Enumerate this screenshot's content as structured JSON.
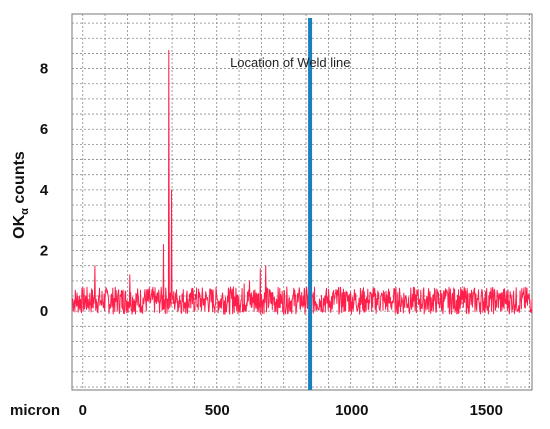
{
  "chart_data": {
    "type": "line",
    "title": "",
    "ylabel": "OK",
    "ylabel_sub": "α",
    "ylabel_rest": " counts",
    "xlabel_prefix": "micron",
    "xlim": [
      -40,
      1670
    ],
    "ylim": [
      -2.6,
      9.8
    ],
    "x_ticks": [
      0,
      500,
      1000,
      1500
    ],
    "x_tick_labels": [
      "0",
      "500",
      "1000",
      "1500"
    ],
    "y_ticks": [
      0,
      2,
      4,
      6,
      8
    ],
    "y_tick_labels": [
      "0",
      "2",
      "4",
      "6",
      "8"
    ],
    "grid": true,
    "grid_step_x": 83,
    "grid_step_y": 0.5,
    "series": [
      {
        "color": "#ff1f4b",
        "x": [
          -40,
          -20,
          0,
          25,
          45,
          50,
          70,
          90,
          110,
          130,
          150,
          170,
          175,
          190,
          210,
          230,
          250,
          270,
          290,
          300,
          310,
          315,
          320,
          325,
          330,
          335,
          340,
          345,
          350,
          360,
          380,
          400,
          420,
          440,
          460,
          480,
          500,
          520,
          540,
          560,
          580,
          600,
          620,
          640,
          660,
          680,
          700,
          720,
          740,
          760,
          780,
          800,
          820,
          840,
          860,
          880,
          900,
          920,
          940,
          960,
          980,
          1000,
          1050,
          1100,
          1150,
          1200,
          1250,
          1300,
          1350,
          1400,
          1450,
          1500,
          1550,
          1600,
          1650,
          1670
        ],
        "y": [
          0.4,
          0.2,
          0.5,
          0.3,
          1.5,
          0.4,
          0.2,
          0.6,
          0.3,
          0.5,
          0.7,
          0.3,
          1.2,
          0.4,
          0.2,
          0.6,
          0.4,
          0.3,
          0.5,
          2.2,
          0.5,
          0.4,
          8.6,
          0.6,
          4.0,
          0.5,
          0.3,
          0.6,
          0.4,
          0.5,
          0.3,
          0.6,
          0.4,
          0.3,
          0.5,
          0.7,
          0.4,
          0.6,
          0.3,
          0.8,
          0.5,
          0.9,
          1.0,
          0.7,
          1.4,
          1.5,
          0.6,
          0.4,
          0.3,
          0.5,
          0.4,
          0.3,
          0.5,
          0.6,
          0.2,
          0.4,
          0.5,
          0.3,
          0.6,
          0.4,
          0.5,
          0.3,
          0.4,
          0.6,
          0.3,
          0.5,
          0.4,
          0.3,
          0.5,
          0.4,
          0.3,
          0.6,
          0.4,
          0.5,
          0.3,
          0.4
        ]
      }
    ],
    "annotations": [
      {
        "text": "Location of Weld line",
        "x": 845,
        "color": "#1a7fc1"
      }
    ]
  }
}
